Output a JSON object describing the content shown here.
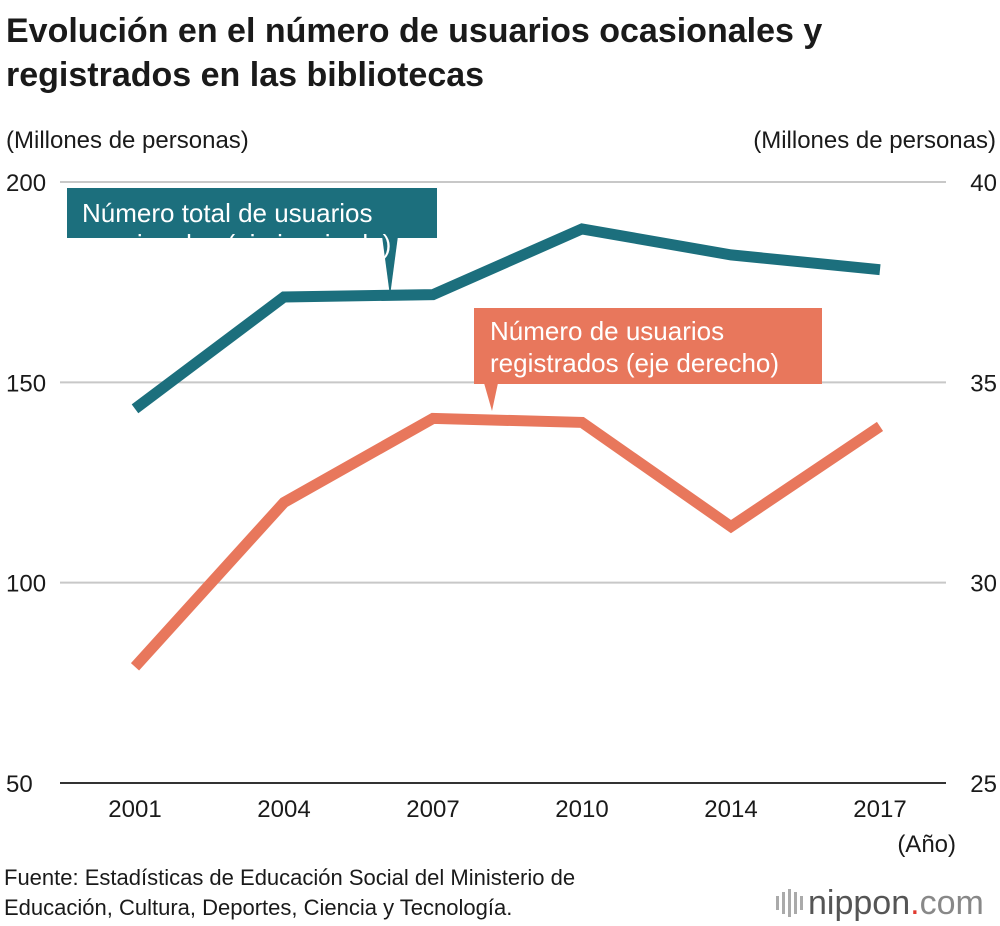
{
  "chart_data": {
    "type": "line",
    "title": "Evolución en el número de usuarios ocasionales y registrados en las bibliotecas",
    "title_lines": [
      "Evolución en el número de usuarios ocasionales y",
      "registrados en las bibliotecas"
    ],
    "y_left_unit": "(Millones de personas)",
    "y_right_unit": "(Millones de personas)",
    "x_unit": "(Año)",
    "categories": [
      "2001",
      "2004",
      "2007",
      "2010",
      "2014",
      "2017"
    ],
    "y_left": {
      "range": [
        50,
        200
      ],
      "ticks": [
        "200",
        "150",
        "100",
        "50"
      ]
    },
    "y_right": {
      "range": [
        25,
        40
      ],
      "ticks": [
        "40",
        "35",
        "30",
        "25"
      ]
    },
    "grid": true,
    "series": [
      {
        "name": "Número total de usuarios ocasionales (eje izquierdo)",
        "label_lines": [
          "Número total de usuarios",
          "ocasionales (eje izquierdo)"
        ],
        "axis": "left",
        "color": "#1c6f7d",
        "values": [
          143.4,
          171.3,
          171.9,
          188.3,
          181.8,
          178.1
        ]
      },
      {
        "name": "Número de usuarios registrados (eje derecho)",
        "label_lines": [
          "Número de usuarios",
          "registrados (eje derecho)"
        ],
        "axis": "right",
        "color": "#e8775c",
        "values": [
          27.9,
          32.0,
          34.1,
          34.0,
          31.4,
          33.9
        ]
      }
    ]
  },
  "source_lines": [
    "Fuente: Estadísticas de Educación Social del Ministerio de",
    "Educación, Cultura, Deportes, Ciencia y Tecnología."
  ],
  "logo": {
    "main": "nippon",
    "dot": ".",
    "com": "com"
  }
}
